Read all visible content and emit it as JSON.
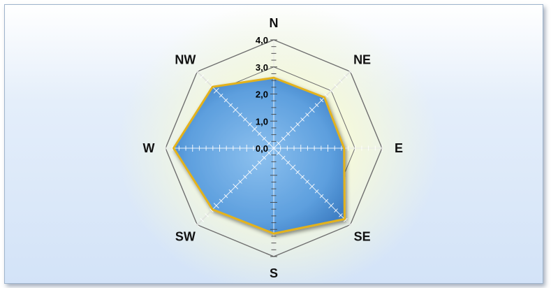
{
  "chart_data": {
    "type": "radar",
    "categories": [
      "N",
      "NE",
      "E",
      "SE",
      "S",
      "SW",
      "W",
      "NW"
    ],
    "series": [
      {
        "values": [
          2.6,
          2.65,
          2.6,
          3.7,
          3.15,
          3.2,
          3.7,
          3.2
        ]
      }
    ],
    "rlim": [
      0,
      4.0
    ],
    "tick_labels": [
      "0,0",
      "1,0",
      "2,0",
      "3,0",
      "4,0"
    ],
    "grid": true,
    "legend": "none",
    "colors": {
      "fill": "#5d9fde",
      "fill_edge": "#3f7fc4",
      "outline": "#e3b21a",
      "grid": "#6f6f6f",
      "spoke": "#ffffff"
    }
  }
}
